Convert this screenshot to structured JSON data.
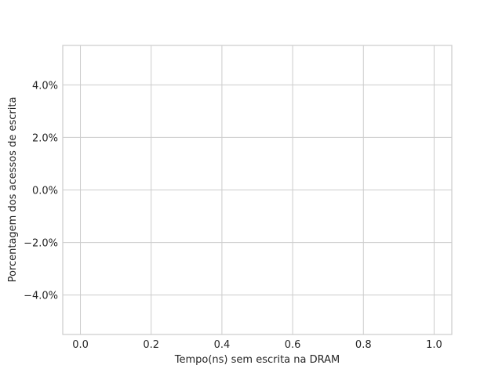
{
  "chart_data": {
    "type": "line",
    "title": "",
    "xlabel": "Tempo(ns) sem escrita na DRAM",
    "ylabel": "Porcentagem dos acessos de escrita",
    "xlim": [
      -0.05,
      1.05
    ],
    "ylim": [
      -0.055,
      0.055
    ],
    "x_ticks": [
      0.0,
      0.2,
      0.4,
      0.6,
      0.8,
      1.0
    ],
    "x_tick_labels": [
      "0.0",
      "0.2",
      "0.4",
      "0.6",
      "0.8",
      "1.0"
    ],
    "y_ticks": [
      0.04,
      0.02,
      0.0,
      -0.02,
      -0.04
    ],
    "y_tick_labels": [
      "4.0%",
      "2.0%",
      "0.0%",
      "−2.0%",
      "−4.0%"
    ],
    "grid": true,
    "series": []
  },
  "colors": {
    "grid": "#cccccc",
    "text": "#262626",
    "background": "#ffffff"
  }
}
